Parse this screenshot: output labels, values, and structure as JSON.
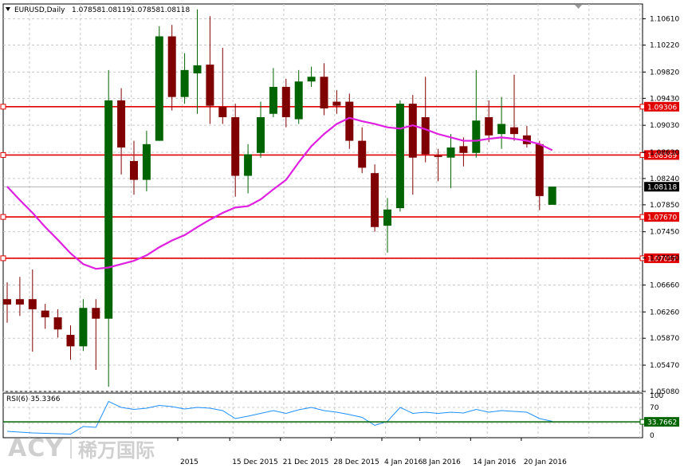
{
  "chart_data": {
    "type": "candlestick",
    "title": "EURUSD,Daily",
    "ohlc_header": [
      "1.07858",
      "1.08119",
      "1.07858",
      "1.08118"
    ],
    "ylim": [
      1.0508,
      1.1083
    ],
    "y_ticks": [
      "1.10610",
      "1.10220",
      "1.09820",
      "1.09430",
      "1.09030",
      "1.08630",
      "1.08240",
      "1.07850",
      "1.07450",
      "1.07060",
      "1.06660",
      "1.06260",
      "1.05870",
      "1.05470",
      "1.05080"
    ],
    "x_labels": [
      "2015",
      "15 Dec 2015",
      "21 Dec 2015",
      "28 Dec 2015",
      "4 Jan 2016",
      "8 Jan 2016",
      "14 Jan 2016",
      "20 Jan 2016"
    ],
    "candles": [
      {
        "o": 1.0645,
        "h": 1.067,
        "l": 1.061,
        "c": 1.0637
      },
      {
        "o": 1.0645,
        "h": 1.0678,
        "l": 1.062,
        "c": 1.0637
      },
      {
        "o": 1.0645,
        "h": 1.0689,
        "l": 1.0567,
        "c": 1.063
      },
      {
        "o": 1.0628,
        "h": 1.0638,
        "l": 1.0601,
        "c": 1.0618
      },
      {
        "o": 1.0618,
        "h": 1.063,
        "l": 1.0588,
        "c": 1.06
      },
      {
        "o": 1.0592,
        "h": 1.0606,
        "l": 1.0555,
        "c": 1.0575
      },
      {
        "o": 1.0575,
        "h": 1.0645,
        "l": 1.0568,
        "c": 1.0632
      },
      {
        "o": 1.0632,
        "h": 1.0645,
        "l": 1.054,
        "c": 1.0616
      },
      {
        "o": 1.0616,
        "h": 1.0985,
        "l": 1.0515,
        "c": 1.094
      },
      {
        "o": 1.094,
        "h": 1.0958,
        "l": 1.083,
        "c": 1.087
      },
      {
        "o": 1.085,
        "h": 1.088,
        "l": 1.08,
        "c": 1.0822
      },
      {
        "o": 1.0822,
        "h": 1.0895,
        "l": 1.0805,
        "c": 1.0875
      },
      {
        "o": 1.088,
        "h": 1.105,
        "l": 1.088,
        "c": 1.1035
      },
      {
        "o": 1.1035,
        "h": 1.1052,
        "l": 1.0925,
        "c": 1.0945
      },
      {
        "o": 1.0945,
        "h": 1.101,
        "l": 1.0935,
        "c": 1.0985
      },
      {
        "o": 1.098,
        "h": 1.1075,
        "l": 1.092,
        "c": 1.0992
      },
      {
        "o": 1.0993,
        "h": 1.1065,
        "l": 1.0905,
        "c": 1.0932
      },
      {
        "o": 1.093,
        "h": 1.1018,
        "l": 1.0905,
        "c": 1.0915
      },
      {
        "o": 1.0915,
        "h": 1.0935,
        "l": 1.0797,
        "c": 1.0828
      },
      {
        "o": 1.0828,
        "h": 1.0875,
        "l": 1.0802,
        "c": 1.086
      },
      {
        "o": 1.0862,
        "h": 1.0938,
        "l": 1.0855,
        "c": 1.0915
      },
      {
        "o": 1.092,
        "h": 1.0988,
        "l": 1.0915,
        "c": 1.096
      },
      {
        "o": 1.096,
        "h": 1.0972,
        "l": 1.09,
        "c": 1.0915
      },
      {
        "o": 1.0912,
        "h": 1.0985,
        "l": 1.0905,
        "c": 1.0968
      },
      {
        "o": 1.0968,
        "h": 1.099,
        "l": 1.096,
        "c": 1.0975
      },
      {
        "o": 1.0975,
        "h": 1.0995,
        "l": 1.0918,
        "c": 1.0928
      },
      {
        "o": 1.0938,
        "h": 1.0955,
        "l": 1.092,
        "c": 1.0932
      },
      {
        "o": 1.0938,
        "h": 1.095,
        "l": 1.0868,
        "c": 1.088
      },
      {
        "o": 1.088,
        "h": 1.09,
        "l": 1.0832,
        "c": 1.084
      },
      {
        "o": 1.0832,
        "h": 1.0845,
        "l": 1.0745,
        "c": 1.0752
      },
      {
        "o": 1.0754,
        "h": 1.0795,
        "l": 1.0714,
        "c": 1.0778
      },
      {
        "o": 1.078,
        "h": 1.094,
        "l": 1.0775,
        "c": 1.0935
      },
      {
        "o": 1.0935,
        "h": 1.0948,
        "l": 1.08,
        "c": 1.0855
      },
      {
        "o": 1.0915,
        "h": 1.0975,
        "l": 1.0848,
        "c": 1.086
      },
      {
        "o": 1.0858,
        "h": 1.0868,
        "l": 1.082,
        "c": 1.0856
      },
      {
        "o": 1.0855,
        "h": 1.089,
        "l": 1.081,
        "c": 1.087
      },
      {
        "o": 1.0872,
        "h": 1.0885,
        "l": 1.0842,
        "c": 1.0862
      },
      {
        "o": 1.0862,
        "h": 1.0985,
        "l": 1.0855,
        "c": 1.091
      },
      {
        "o": 1.0915,
        "h": 1.094,
        "l": 1.0878,
        "c": 1.0888
      },
      {
        "o": 1.089,
        "h": 1.0945,
        "l": 1.0868,
        "c": 1.0905
      },
      {
        "o": 1.09,
        "h": 1.0978,
        "l": 1.088,
        "c": 1.089
      },
      {
        "o": 1.0888,
        "h": 1.0902,
        "l": 1.087,
        "c": 1.0875
      },
      {
        "o": 1.0875,
        "h": 1.088,
        "l": 1.0777,
        "c": 1.0798
      },
      {
        "o": 1.0785,
        "h": 1.0812,
        "l": 1.0785,
        "c": 1.0812
      }
    ],
    "ma_line": [
      1.0812,
      1.0792,
      1.0773,
      1.0752,
      1.0733,
      1.0713,
      1.0697,
      1.069,
      1.0692,
      1.0697,
      1.0702,
      1.071,
      1.0722,
      1.0732,
      1.074,
      1.0752,
      1.0763,
      1.0773,
      1.0781,
      1.0783,
      1.0793,
      1.0808,
      1.0822,
      1.0848,
      1.0872,
      1.089,
      1.0905,
      1.0914,
      1.0909,
      1.0905,
      1.09,
      1.0898,
      1.0903,
      1.0897,
      1.089,
      1.0885,
      1.088,
      1.088,
      1.0883,
      1.0885,
      1.0883,
      1.088,
      1.0875,
      1.0866
    ],
    "h_levels": [
      {
        "value": 1.09306,
        "label": "1.09306"
      },
      {
        "value": 1.08589,
        "label": "1.08589"
      },
      {
        "value": 1.0767,
        "label": "1.07670"
      },
      {
        "value": 1.07057,
        "label": "1.07057"
      }
    ],
    "current_price": "1.08118",
    "rsi": {
      "label": "RSI(6) 35.3366",
      "ticks": [
        "100",
        "70",
        "30",
        "0"
      ],
      "values": [
        10,
        8,
        6,
        5,
        4,
        3,
        22,
        20,
        85,
        70,
        65,
        68,
        75,
        72,
        66,
        70,
        68,
        62,
        42,
        48,
        55,
        62,
        55,
        64,
        70,
        62,
        58,
        52,
        45,
        25,
        35,
        70,
        55,
        58,
        55,
        58,
        56,
        65,
        58,
        62,
        60,
        58,
        42,
        35
      ],
      "level": {
        "value": 33.7662,
        "label": "33.7662"
      }
    },
    "colors": {
      "bull": "#006400",
      "bear": "#800000",
      "ma": "#e020e0",
      "level": "#e00000",
      "rsi": "#1e90ff",
      "rsi_level": "#006400"
    }
  },
  "watermark": {
    "logo": "ACY",
    "chinese": "稀万国际"
  }
}
